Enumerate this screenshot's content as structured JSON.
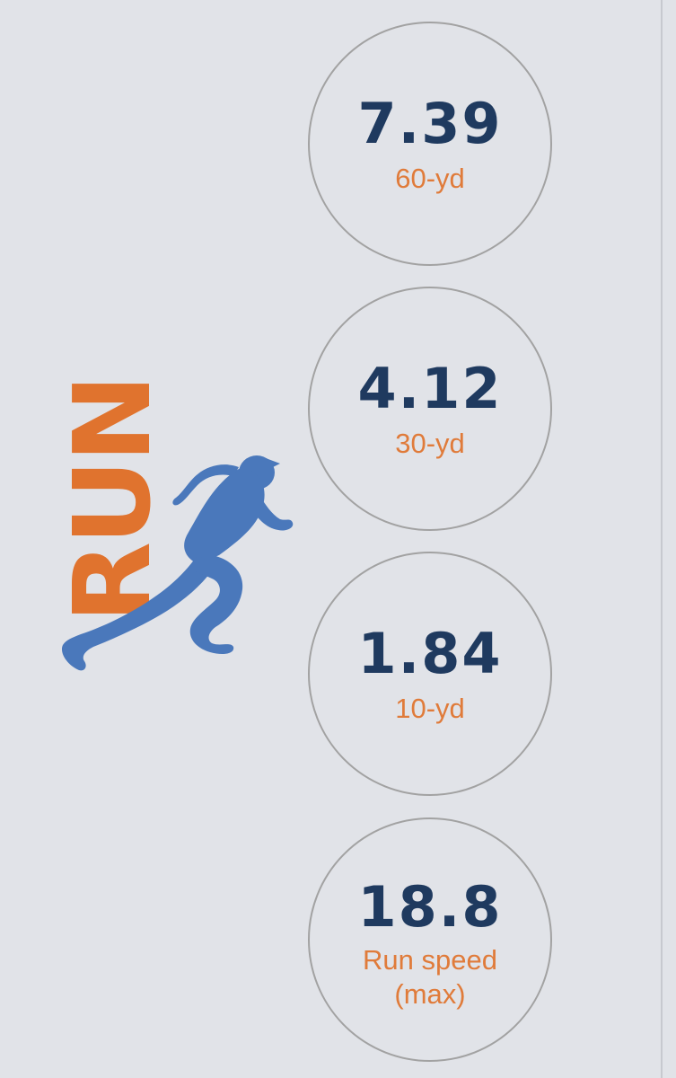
{
  "logo": {
    "word": "RUN",
    "icon": "runner-icon",
    "colors": {
      "word": "#e0732e",
      "runner": "#4a78bb"
    }
  },
  "metrics": [
    {
      "value": "7.39",
      "label": "60-yd"
    },
    {
      "value": "4.12",
      "label": "30-yd"
    },
    {
      "value": "1.84",
      "label": "10-yd"
    },
    {
      "value": "18.8",
      "label_line1": "Run speed",
      "label_line2": "(max)"
    }
  ],
  "colors": {
    "background": "#e1e3e8",
    "value": "#1f3a5f",
    "label": "#e07b3a",
    "circle_border": "#a2a2a2"
  }
}
